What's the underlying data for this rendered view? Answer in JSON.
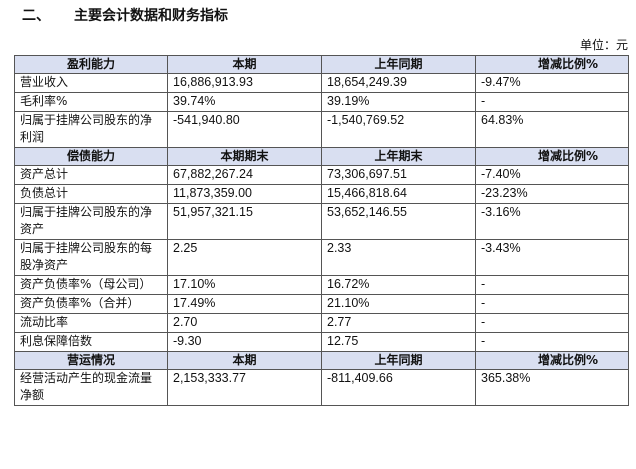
{
  "section": {
    "number": "二、",
    "title": "主要会计数据和财务指标"
  },
  "unit_label": "单位：元",
  "groups": [
    {
      "header": [
        "盈利能力",
        "本期",
        "上年同期",
        "增减比例%"
      ],
      "rows": [
        [
          "营业收入",
          "16,886,913.93",
          "18,654,249.39",
          "-9.47%"
        ],
        [
          "毛利率%",
          "39.74%",
          "39.19%",
          "-"
        ],
        [
          "归属于挂牌公司股东的净利润",
          "-541,940.80",
          "-1,540,769.52",
          "64.83%"
        ]
      ]
    },
    {
      "header": [
        "偿债能力",
        "本期期末",
        "上年期末",
        "增减比例%"
      ],
      "rows": [
        [
          "资产总计",
          "67,882,267.24",
          "73,306,697.51",
          "-7.40%"
        ],
        [
          "负债总计",
          "11,873,359.00",
          "15,466,818.64",
          "-23.23%"
        ],
        [
          "归属于挂牌公司股东的净资产",
          "51,957,321.15",
          "53,652,146.55",
          "-3.16%"
        ],
        [
          "归属于挂牌公司股东的每股净资产",
          "2.25",
          "2.33",
          "-3.43%"
        ],
        [
          "资产负债率%（母公司）",
          "17.10%",
          "16.72%",
          "-"
        ],
        [
          "资产负债率%（合并）",
          "17.49%",
          "21.10%",
          "-"
        ],
        [
          "流动比率",
          "2.70",
          "2.77",
          "-"
        ],
        [
          "利息保障倍数",
          "-9.30",
          "12.75",
          "-"
        ]
      ]
    },
    {
      "header": [
        "营运情况",
        "本期",
        "上年同期",
        "增减比例%"
      ],
      "rows": [
        [
          "经营活动产生的现金流量净额",
          "2,153,333.77",
          "-811,409.66",
          "365.38%"
        ]
      ]
    }
  ]
}
